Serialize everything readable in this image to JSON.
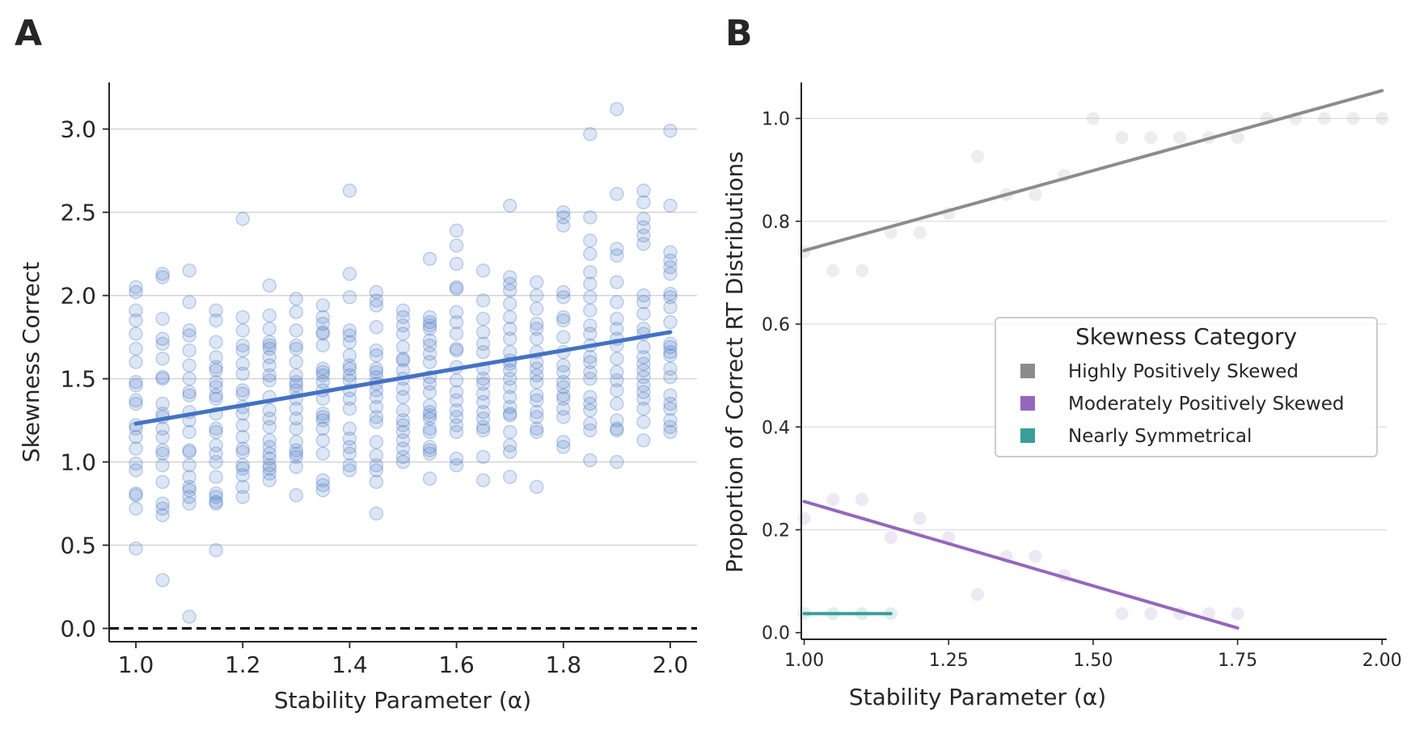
{
  "figure": {
    "panel_a_label": "A",
    "panel_b_label": "B"
  },
  "chart_data": [
    {
      "type": "scatter",
      "panel": "A",
      "title": "",
      "xlabel": "Stability Parameter (α)",
      "ylabel": "Skewness Correct",
      "xlim": [
        0.95,
        2.05
      ],
      "ylim": [
        -0.08,
        3.28
      ],
      "xticks": [
        1.0,
        1.2,
        1.4,
        1.6,
        1.8,
        2.0
      ],
      "xtick_labels": [
        "1.0",
        "1.2",
        "1.4",
        "1.6",
        "1.8",
        "2.0"
      ],
      "yticks": [
        0.0,
        0.5,
        1.0,
        1.5,
        2.0,
        2.5,
        3.0
      ],
      "ytick_labels": [
        "0.0",
        "0.5",
        "1.0",
        "1.5",
        "2.0",
        "2.5",
        "3.0"
      ],
      "grid": "horizontal",
      "point_color": "#4472c4",
      "reference_line": {
        "y": 0,
        "style": "dashed",
        "color": "#000000"
      },
      "regression": {
        "x": [
          1.0,
          2.0
        ],
        "y": [
          1.23,
          1.78
        ],
        "color": "#4472c4"
      },
      "points": [
        {
          "x": 1.0,
          "ys": [
            2.05,
            2.02,
            1.91,
            1.85,
            1.77,
            1.68,
            1.6,
            1.48,
            1.46,
            1.37,
            1.35,
            1.22,
            1.2,
            1.15,
            1.08,
            0.99,
            0.95,
            0.81,
            0.8,
            0.72,
            0.48
          ]
        },
        {
          "x": 1.05,
          "ys": [
            2.13,
            2.11,
            1.86,
            1.74,
            1.71,
            1.62,
            1.51,
            1.5,
            1.35,
            1.29,
            1.27,
            1.2,
            1.15,
            1.07,
            1.05,
            0.98,
            0.88,
            0.75,
            0.72,
            0.68,
            0.29
          ]
        },
        {
          "x": 1.1,
          "ys": [
            2.15,
            1.96,
            1.79,
            1.76,
            1.67,
            1.58,
            1.5,
            1.42,
            1.4,
            1.3,
            1.25,
            1.18,
            1.07,
            1.06,
            0.98,
            0.91,
            0.85,
            0.83,
            0.79,
            0.75,
            0.07
          ]
        },
        {
          "x": 1.15,
          "ys": [
            1.91,
            1.85,
            1.72,
            1.63,
            1.57,
            1.55,
            1.48,
            1.45,
            1.4,
            1.38,
            1.29,
            1.2,
            1.18,
            1.1,
            1.05,
            1.0,
            0.91,
            0.81,
            0.79,
            0.76,
            0.75,
            0.47
          ]
        },
        {
          "x": 1.2,
          "ys": [
            2.46,
            1.87,
            1.79,
            1.7,
            1.67,
            1.59,
            1.53,
            1.43,
            1.41,
            1.33,
            1.29,
            1.22,
            1.15,
            1.08,
            1.06,
            0.98,
            0.96,
            0.92,
            0.85,
            0.79
          ]
        },
        {
          "x": 1.25,
          "ys": [
            2.06,
            1.88,
            1.8,
            1.72,
            1.7,
            1.68,
            1.63,
            1.58,
            1.52,
            1.49,
            1.39,
            1.31,
            1.26,
            1.21,
            1.13,
            1.09,
            1.05,
            1.02,
            0.98,
            0.96,
            0.93,
            0.89
          ]
        },
        {
          "x": 1.3,
          "ys": [
            1.98,
            1.9,
            1.79,
            1.7,
            1.68,
            1.6,
            1.52,
            1.48,
            1.46,
            1.43,
            1.38,
            1.32,
            1.26,
            1.2,
            1.12,
            1.07,
            1.05,
            1.03,
            0.97,
            0.8
          ]
        },
        {
          "x": 1.35,
          "ys": [
            1.94,
            1.87,
            1.83,
            1.78,
            1.77,
            1.7,
            1.56,
            1.54,
            1.52,
            1.48,
            1.43,
            1.38,
            1.29,
            1.27,
            1.25,
            1.2,
            1.13,
            1.05,
            0.89,
            0.86,
            0.83
          ]
        },
        {
          "x": 1.4,
          "ys": [
            2.63,
            2.13,
            1.99,
            1.79,
            1.76,
            1.72,
            1.64,
            1.58,
            1.56,
            1.52,
            1.49,
            1.43,
            1.38,
            1.32,
            1.2,
            1.14,
            1.09,
            1.05,
            0.98,
            0.95
          ]
        },
        {
          "x": 1.45,
          "ys": [
            2.02,
            1.97,
            1.94,
            1.81,
            1.67,
            1.64,
            1.56,
            1.54,
            1.51,
            1.47,
            1.43,
            1.39,
            1.33,
            1.27,
            1.24,
            1.12,
            1.04,
            0.98,
            0.95,
            0.88,
            0.69
          ]
        },
        {
          "x": 1.5,
          "ys": [
            1.91,
            1.87,
            1.82,
            1.77,
            1.69,
            1.62,
            1.61,
            1.55,
            1.5,
            1.44,
            1.39,
            1.31,
            1.25,
            1.22,
            1.18,
            1.13,
            1.08,
            1.03,
            1.0
          ]
        },
        {
          "x": 1.55,
          "ys": [
            2.22,
            1.87,
            1.84,
            1.82,
            1.8,
            1.73,
            1.7,
            1.65,
            1.6,
            1.51,
            1.47,
            1.42,
            1.34,
            1.3,
            1.28,
            1.26,
            1.2,
            1.18,
            1.09,
            1.07,
            1.05,
            0.9
          ]
        },
        {
          "x": 1.6,
          "ys": [
            2.39,
            2.3,
            2.19,
            2.05,
            2.04,
            1.9,
            1.84,
            1.77,
            1.68,
            1.67,
            1.57,
            1.49,
            1.42,
            1.37,
            1.31,
            1.27,
            1.22,
            1.18,
            1.02,
            0.98
          ]
        },
        {
          "x": 1.65,
          "ys": [
            2.15,
            1.97,
            1.86,
            1.78,
            1.71,
            1.66,
            1.56,
            1.5,
            1.47,
            1.41,
            1.36,
            1.3,
            1.26,
            1.21,
            1.19,
            1.03,
            0.89
          ]
        },
        {
          "x": 1.7,
          "ys": [
            2.54,
            2.11,
            2.07,
            2.03,
            1.95,
            1.87,
            1.8,
            1.74,
            1.66,
            1.61,
            1.59,
            1.55,
            1.5,
            1.45,
            1.39,
            1.33,
            1.29,
            1.28,
            1.18,
            1.1,
            1.06,
            0.91
          ]
        },
        {
          "x": 1.75,
          "ys": [
            2.08,
            2.0,
            1.92,
            1.83,
            1.8,
            1.74,
            1.66,
            1.6,
            1.56,
            1.52,
            1.48,
            1.4,
            1.37,
            1.3,
            1.27,
            1.2,
            1.18,
            0.85
          ]
        },
        {
          "x": 1.8,
          "ys": [
            2.5,
            2.47,
            2.42,
            2.02,
            1.99,
            1.87,
            1.85,
            1.75,
            1.66,
            1.58,
            1.54,
            1.48,
            1.45,
            1.4,
            1.38,
            1.32,
            1.27,
            1.12,
            1.09
          ]
        },
        {
          "x": 1.85,
          "ys": [
            2.97,
            2.47,
            2.33,
            2.25,
            2.14,
            2.07,
            1.99,
            1.91,
            1.82,
            1.77,
            1.7,
            1.63,
            1.6,
            1.54,
            1.5,
            1.39,
            1.35,
            1.31,
            1.23,
            1.19,
            1.01
          ]
        },
        {
          "x": 1.9,
          "ys": [
            3.12,
            2.61,
            2.28,
            2.24,
            2.08,
            1.96,
            1.86,
            1.8,
            1.74,
            1.7,
            1.62,
            1.54,
            1.49,
            1.43,
            1.35,
            1.25,
            1.2,
            1.19,
            1.0
          ]
        },
        {
          "x": 1.95,
          "ys": [
            2.63,
            2.56,
            2.46,
            2.41,
            2.36,
            2.31,
            2.0,
            1.96,
            1.89,
            1.8,
            1.77,
            1.69,
            1.63,
            1.59,
            1.55,
            1.51,
            1.46,
            1.42,
            1.38,
            1.32,
            1.24,
            1.13
          ]
        },
        {
          "x": 2.0,
          "ys": [
            2.99,
            2.54,
            2.26,
            2.21,
            2.17,
            2.13,
            2.01,
            1.99,
            1.93,
            1.84,
            1.71,
            1.69,
            1.66,
            1.64,
            1.56,
            1.51,
            1.4,
            1.35,
            1.32,
            1.25,
            1.21,
            1.18
          ]
        }
      ]
    },
    {
      "type": "scatter",
      "panel": "B",
      "title": "",
      "xlabel": "Stability Parameter (α)",
      "ylabel": "Proportion of Correct RT Distributions",
      "xlim": [
        0.995,
        2.008
      ],
      "ylim": [
        -0.013,
        1.07
      ],
      "xticks": [
        1.0,
        1.25,
        1.5,
        1.75,
        2.0
      ],
      "xtick_labels": [
        "1.00",
        "1.25",
        "1.50",
        "1.75",
        "2.00"
      ],
      "yticks": [
        0.0,
        0.2,
        0.4,
        0.6,
        0.8,
        1.0
      ],
      "ytick_labels": [
        "0.0",
        "0.2",
        "0.4",
        "0.6",
        "0.8",
        "1.0"
      ],
      "grid": "horizontal",
      "legend": {
        "title": "Skewness Category",
        "position": "center-right",
        "entries": [
          {
            "label": "Highly Positively Skewed",
            "color": "#8c8c8c"
          },
          {
            "label": "Moderately Positively Skewed",
            "color": "#9467bd"
          },
          {
            "label": "Nearly Symmetrical",
            "color": "#3a9e9a"
          }
        ]
      },
      "series": [
        {
          "name": "Highly Positively Skewed",
          "color": "#8c8c8c",
          "x": [
            1.0,
            1.05,
            1.1,
            1.15,
            1.2,
            1.25,
            1.3,
            1.35,
            1.4,
            1.45,
            1.5,
            1.55,
            1.6,
            1.65,
            1.7,
            1.75,
            1.8,
            1.85,
            1.9,
            1.95,
            2.0
          ],
          "y": [
            0.741,
            0.704,
            0.704,
            0.778,
            0.778,
            0.815,
            0.926,
            0.852,
            0.852,
            0.889,
            1.0,
            0.963,
            0.963,
            0.963,
            0.963,
            0.963,
            1.0,
            1.0,
            1.0,
            1.0,
            1.0
          ],
          "fit": {
            "x": [
              1.0,
              2.0
            ],
            "y": [
              0.743,
              1.054
            ]
          }
        },
        {
          "name": "Moderately Positively Skewed",
          "color": "#9467bd",
          "x": [
            1.0,
            1.05,
            1.1,
            1.15,
            1.2,
            1.25,
            1.3,
            1.35,
            1.4,
            1.45,
            1.55,
            1.6,
            1.65,
            1.7,
            1.75
          ],
          "y": [
            0.222,
            0.259,
            0.259,
            0.185,
            0.222,
            0.185,
            0.074,
            0.148,
            0.148,
            0.111,
            0.037,
            0.037,
            0.037,
            0.037,
            0.037
          ],
          "fit": {
            "x": [
              1.0,
              1.75
            ],
            "y": [
              0.255,
              0.009
            ]
          }
        },
        {
          "name": "Nearly Symmetrical",
          "color": "#3a9e9a",
          "x": [
            1.0,
            1.05,
            1.1,
            1.15
          ],
          "y": [
            0.037,
            0.037,
            0.037,
            0.037
          ],
          "fit": {
            "x": [
              1.0,
              1.15
            ],
            "y": [
              0.037,
              0.037
            ]
          }
        }
      ]
    }
  ]
}
